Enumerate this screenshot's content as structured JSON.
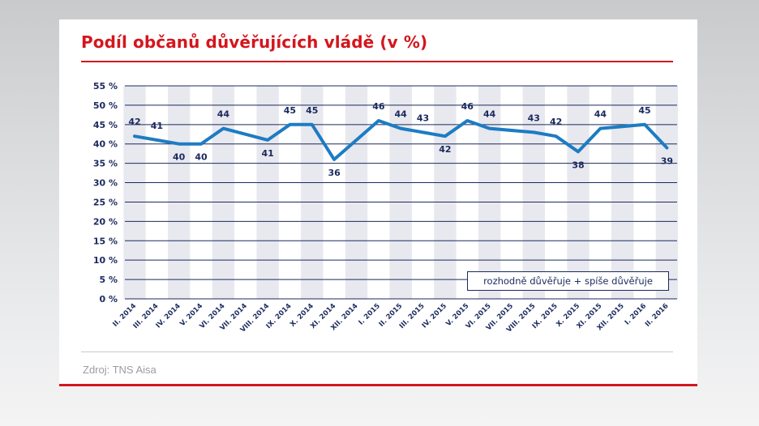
{
  "title": "Podíl občanů důvěřujících vládě (v %)",
  "source": "Zdroj: TNS Aisa",
  "colors": {
    "accent": "#d4161d",
    "line": "#1c7cc3",
    "navy": "#1b2a5e",
    "band": "#e8e8ef"
  },
  "chart_data": {
    "type": "line",
    "title": "Podíl občanů důvěřujících vládě (v %)",
    "xlabel": "",
    "ylabel": "",
    "ylim": [
      0,
      55
    ],
    "yticks": [
      "0 %",
      "5 %",
      "10 %",
      "15 %",
      "20 %",
      "25 %",
      "30 %",
      "35 %",
      "40 %",
      "45 %",
      "50 %",
      "55 %"
    ],
    "grid": true,
    "categories": [
      "II. 2014",
      "III. 2014",
      "IV. 2014",
      "V. 2014",
      "VI. 2014",
      "VII. 2014",
      "VIII. 2014",
      "IX. 2014",
      "X. 2014",
      "XI. 2014",
      "XII. 2014",
      "I. 2015",
      "II. 2015",
      "III. 2015",
      "IV. 2015",
      "V. 2015",
      "VI. 2015",
      "VII. 2015",
      "VIII. 2015",
      "IX. 2015",
      "X. 2015",
      "XI. 2015",
      "XII. 2015",
      "I. 2016",
      "II. 2016"
    ],
    "series": [
      {
        "name": "rozhodně důvěřuje + spíše důvěřuje",
        "values": [
          42,
          41,
          40,
          40,
          44,
          null,
          41,
          45,
          45,
          36,
          null,
          46,
          44,
          43,
          42,
          46,
          44,
          null,
          43,
          42,
          38,
          44,
          null,
          45,
          39
        ]
      }
    ],
    "legend": "bottom-right"
  }
}
